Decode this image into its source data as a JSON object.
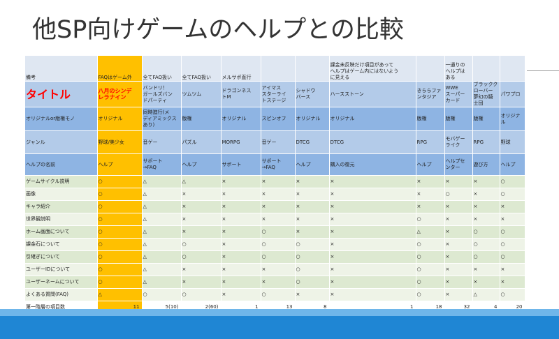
{
  "slide": {
    "title": "他SP向けゲームのヘルプとの比較"
  },
  "table": {
    "head_row": [
      "備考",
      "FAQはゲーム外",
      "全てFAQ扱い",
      "全てFAQ扱い",
      "メルサポ直行",
      "",
      "",
      "課金未反映だけ項目があって\nヘルプはゲーム内にはないよう\nに見える",
      "",
      "一通りの\nヘルプは\nある",
      "",
      ""
    ],
    "title_row": [
      "タイトル",
      "八月のシンデ\nレラナイン",
      "バンドリ！\nガールズバン\nドパーティ",
      "ツムツム",
      "ドラゴンネス\nトM",
      "アイマス\nスターライ\nトステージ",
      "シャドウ\nバース",
      "ハースストーン",
      "きららファ\nンタジア",
      "WWE\nスーパー\nカード",
      "ブラックク\nローバー\n夢幻の騎\n士団",
      "パワプロ"
    ],
    "type_row": [
      "オリジナルor版権モノ",
      "オリジナル",
      "同時進行(メ\nディアミックス\nあり)",
      "版権",
      "オリジナル",
      "スピンオフ",
      "オリジナル",
      "オリジナル",
      "版権",
      "版権",
      "版権",
      "オリジナル"
    ],
    "genre_row": [
      "ジャンル",
      "野球/美少女",
      "音ゲー",
      "パズル",
      "MORPG",
      "音ゲー",
      "DTCG",
      "DTCG",
      "RPG",
      "モバゲー\nライク",
      "RPG",
      "野球"
    ],
    "helpname_row": [
      "ヘルプの名前",
      "ヘルプ",
      "サポート\n→FAQ",
      "ヘルプ",
      "サポート",
      "サポート\n→FAQ",
      "ヘルプ",
      "購入の復元",
      "ヘルプ",
      "ヘルプセ\nンター",
      "遊び方",
      "ヘルプ"
    ],
    "feature_rows": [
      [
        "ゲームサイクル説明",
        "○",
        "△",
        "△",
        "×",
        "×",
        "×",
        "×",
        "×",
        "×",
        "×",
        "○"
      ],
      [
        "画像",
        "○",
        "△",
        "×",
        "×",
        "×",
        "×",
        "×",
        "×",
        "○",
        "×",
        "○"
      ],
      [
        "キャラ紹介",
        "○",
        "△",
        "×",
        "×",
        "×",
        "×",
        "×",
        "×",
        "×",
        "×",
        "×"
      ],
      [
        "世界観説明",
        "○",
        "△",
        "×",
        "×",
        "×",
        "×",
        "×",
        "○",
        "×",
        "×",
        "×"
      ],
      [
        "ホーム画面について",
        "○",
        "△",
        "×",
        "×",
        "○",
        "×",
        "×",
        "△",
        "×",
        "○",
        "○"
      ],
      [
        "課金石について",
        "○",
        "△",
        "○",
        "×",
        "○",
        "○",
        "×",
        "○",
        "×",
        "○",
        "○"
      ],
      [
        "引継ぎについて",
        "○",
        "△",
        "○",
        "×",
        "○",
        "○",
        "×",
        "○",
        "×",
        "○",
        "○"
      ],
      [
        "ユーザーIDについて",
        "○",
        "△",
        "×",
        "×",
        "×",
        "○",
        "×",
        "○",
        "×",
        "×",
        "×"
      ],
      [
        "ユーザーネームについて",
        "○",
        "△",
        "×",
        "×",
        "×",
        "○",
        "×",
        "○",
        "×",
        "×",
        "×"
      ],
      [
        "よくある質問(FAQ)",
        "△",
        "○",
        "○",
        "×",
        "○",
        "×",
        "×",
        "○",
        "×",
        "△",
        "○"
      ]
    ],
    "total_row": [
      "第一階層の項目数",
      "11",
      "5(10)",
      "2(60)",
      "1",
      "13",
      "8",
      "1",
      "18",
      "32",
      "4",
      "20"
    ]
  }
}
